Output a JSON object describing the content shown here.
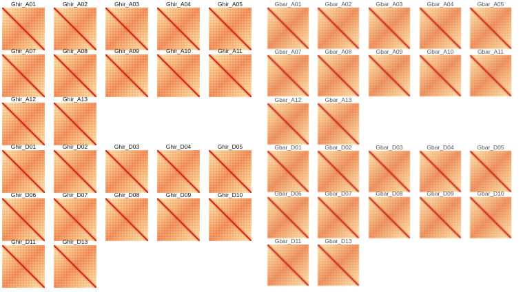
{
  "ghir": [
    "Ghir_A01",
    "Ghir_A02",
    "Ghir_A03",
    "Ghir_A04",
    "Ghir_A05",
    "Ghir_A07",
    "Ghir_A08",
    "Ghir_A09",
    "Ghir_A10",
    "Ghir_A11",
    "Ghir_A12",
    "Ghir_A13",
    "Ghir_D01",
    "Ghir_D02",
    "Ghir_D03",
    "Ghir_D04",
    "Ghir_D05",
    "Ghir_D06",
    "Ghir_D07",
    "Ghir_D08",
    "Ghir_D09",
    "Ghir_D10",
    "Ghir_D11",
    "Ghir_D13"
  ],
  "gbar": [
    "Gbar_A01",
    "Gbar_A02",
    "Gbar_A03",
    "Gbar_A04",
    "Gbar_A05",
    "Gbar_A07",
    "Gbar_A08",
    "Gbar_A09",
    "Gbar_A10",
    "Gbar_A11",
    "Gbar_A12",
    "Gbar_A13",
    "Gbar_D01",
    "Gbar_D02",
    "Gbar_D03",
    "Gbar_D04",
    "Gbar_D05",
    "Gbar_D06",
    "Gbar_D07",
    "Gbar_D08",
    "Gbar_D09",
    "Gbar_D10",
    "Gbar_D11",
    "Gbar_D13"
  ],
  "colors": {
    "diagonal": "#c41e16",
    "high": "#ee8048",
    "low": "#fde8b0"
  }
}
